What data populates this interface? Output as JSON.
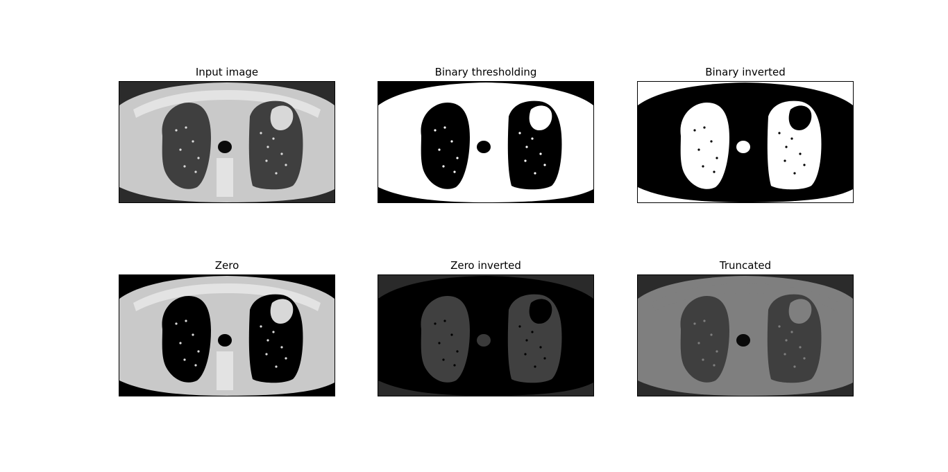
{
  "figure": {
    "panels": [
      {
        "title": "Input image",
        "mode": "input"
      },
      {
        "title": "Binary thresholding",
        "mode": "binary"
      },
      {
        "title": "Binary inverted",
        "mode": "binary_inv"
      },
      {
        "title": "Zero",
        "mode": "zero"
      },
      {
        "title": "Zero inverted",
        "mode": "zero_inv"
      },
      {
        "title": "Truncated",
        "mode": "trunc"
      }
    ]
  }
}
